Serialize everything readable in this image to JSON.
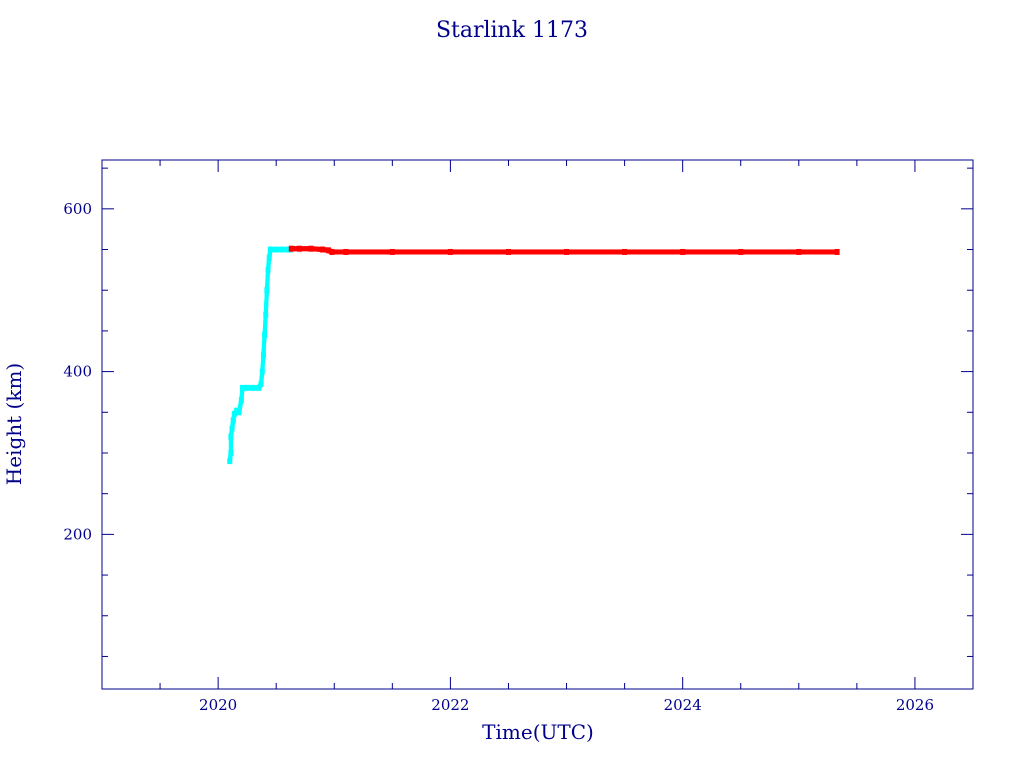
{
  "chart_data": {
    "type": "scatter",
    "title": "Starlink 1173",
    "xlabel": "Time(UTC)",
    "ylabel": "Height (km)",
    "xlim": [
      2019.0,
      2026.5
    ],
    "ylim": [
      10,
      660
    ],
    "x_ticks": [
      2020,
      2022,
      2024,
      2026
    ],
    "y_ticks": [
      200,
      400,
      600
    ],
    "x_minor_step": 0.5,
    "y_minor_step": 50,
    "grid": false,
    "series": [
      {
        "color": "#00ffff",
        "points": [
          [
            2020.1,
            290
          ],
          [
            2020.11,
            300
          ],
          [
            2020.11,
            320
          ],
          [
            2020.12,
            330
          ],
          [
            2020.13,
            340
          ],
          [
            2020.14,
            348
          ],
          [
            2020.16,
            352
          ],
          [
            2020.18,
            350
          ],
          [
            2020.2,
            365
          ],
          [
            2020.21,
            380
          ],
          [
            2020.25,
            380
          ],
          [
            2020.3,
            380
          ],
          [
            2020.35,
            380
          ],
          [
            2020.37,
            385
          ],
          [
            2020.38,
            400
          ],
          [
            2020.39,
            420
          ],
          [
            2020.4,
            445
          ],
          [
            2020.41,
            470
          ],
          [
            2020.42,
            500
          ],
          [
            2020.43,
            525
          ],
          [
            2020.44,
            540
          ],
          [
            2020.45,
            550
          ],
          [
            2020.5,
            550
          ],
          [
            2020.55,
            550
          ],
          [
            2020.6,
            550
          ],
          [
            2020.62,
            550
          ]
        ]
      },
      {
        "color": "#ff0000",
        "points": [
          [
            2020.63,
            551
          ],
          [
            2020.7,
            551
          ],
          [
            2020.8,
            551
          ],
          [
            2020.9,
            550
          ],
          [
            2020.95,
            549
          ],
          [
            2020.98,
            547
          ],
          [
            2021.1,
            547
          ],
          [
            2021.5,
            547
          ],
          [
            2022.0,
            547
          ],
          [
            2022.5,
            547
          ],
          [
            2023.0,
            547
          ],
          [
            2023.5,
            547
          ],
          [
            2024.0,
            547
          ],
          [
            2024.5,
            547
          ],
          [
            2025.0,
            547
          ],
          [
            2025.33,
            547
          ]
        ]
      }
    ]
  }
}
